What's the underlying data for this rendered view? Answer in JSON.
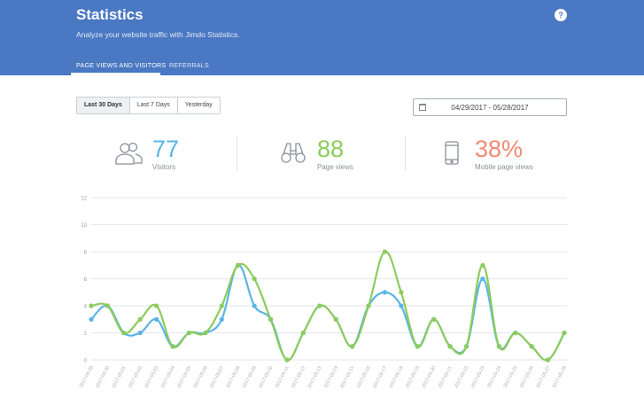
{
  "header": {
    "title": "Statistics",
    "subtitle": "Analyze your website traffic with Jimdo Statistics.",
    "help_label": "?"
  },
  "tabs": [
    {
      "label": "PAGE VIEWS AND VISITORS",
      "active": true
    },
    {
      "label": "REFERRALS",
      "active": false
    }
  ],
  "range_buttons": [
    {
      "label": "Last 30 Days",
      "active": true
    },
    {
      "label": "Last 7 Days",
      "active": false
    },
    {
      "label": "Yesterday",
      "active": false
    }
  ],
  "date_range": {
    "value": "04/29/2017 - 05/28/2017",
    "icon": "calendar-icon"
  },
  "stats": [
    {
      "value": "77",
      "label": "Visitors",
      "icon": "users-icon",
      "color": "#5bb5e6"
    },
    {
      "value": "88",
      "label": "Page views",
      "icon": "binoculars-icon",
      "color": "#8ccc5c"
    },
    {
      "value": "38%",
      "label": "Mobile page views",
      "icon": "mobile-phone-icon",
      "color": "#f08a75"
    }
  ],
  "chart_data": {
    "type": "line",
    "x": [
      "2017-04-29",
      "2017-04-30",
      "2017-05-01",
      "2017-05-02",
      "2017-05-03",
      "2017-05-04",
      "2017-05-05",
      "2017-05-06",
      "2017-05-07",
      "2017-05-08",
      "2017-05-09",
      "2017-05-10",
      "2017-05-11",
      "2017-05-12",
      "2017-05-13",
      "2017-05-14",
      "2017-05-15",
      "2017-05-16",
      "2017-05-17",
      "2017-05-18",
      "2017-05-19",
      "2017-05-20",
      "2017-05-21",
      "2017-05-22",
      "2017-05-23",
      "2017-05-24",
      "2017-05-25",
      "2017-05-26",
      "2017-05-27",
      "2017-05-28"
    ],
    "y_ticks": [
      "0",
      "2",
      "4",
      "6",
      "8",
      "10",
      "12"
    ],
    "ylim": [
      0,
      12
    ],
    "grid": true,
    "series": [
      {
        "color": "#5bb5e6",
        "values": [
          3,
          4,
          2,
          2,
          3,
          1,
          2,
          2,
          3,
          7,
          4,
          3,
          0,
          2,
          4,
          3,
          1,
          4,
          5,
          4,
          1,
          3,
          1,
          1,
          6,
          1,
          2,
          1,
          0,
          2
        ]
      },
      {
        "color": "#8ccc5c",
        "values": [
          4,
          4,
          2,
          3,
          4,
          1,
          2,
          2,
          4,
          7,
          6,
          3,
          0,
          2,
          4,
          3,
          1,
          4,
          8,
          5,
          1,
          3,
          1,
          1,
          7,
          1,
          2,
          1,
          0,
          2
        ]
      }
    ]
  }
}
